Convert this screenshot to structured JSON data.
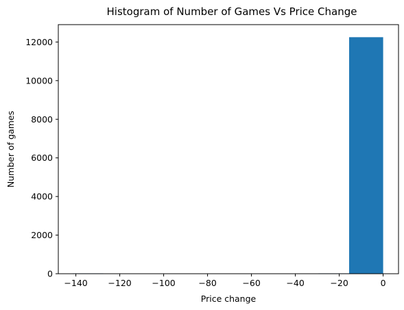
{
  "chart_data": {
    "type": "bar",
    "title": "Histogram of Number of Games Vs Price Change",
    "xlabel": "Price change",
    "ylabel": "Number of games",
    "bin_edges": [
      -141.5,
      -127.5,
      -113.5,
      -99.5,
      -85.5,
      -71.5,
      -57.5,
      -43.5,
      -29.5,
      -15.5,
      0
    ],
    "values": [
      20,
      0,
      0,
      0,
      0,
      0,
      0,
      10,
      20,
      12250
    ],
    "xlim": [
      -148,
      7
    ],
    "ylim": [
      0,
      12900
    ],
    "xticks": [
      -140,
      -120,
      -100,
      -80,
      -60,
      -40,
      -20,
      0
    ],
    "yticks": [
      0,
      2000,
      4000,
      6000,
      8000,
      10000,
      12000
    ],
    "grid": false,
    "bar_color": "#1f77b4"
  }
}
